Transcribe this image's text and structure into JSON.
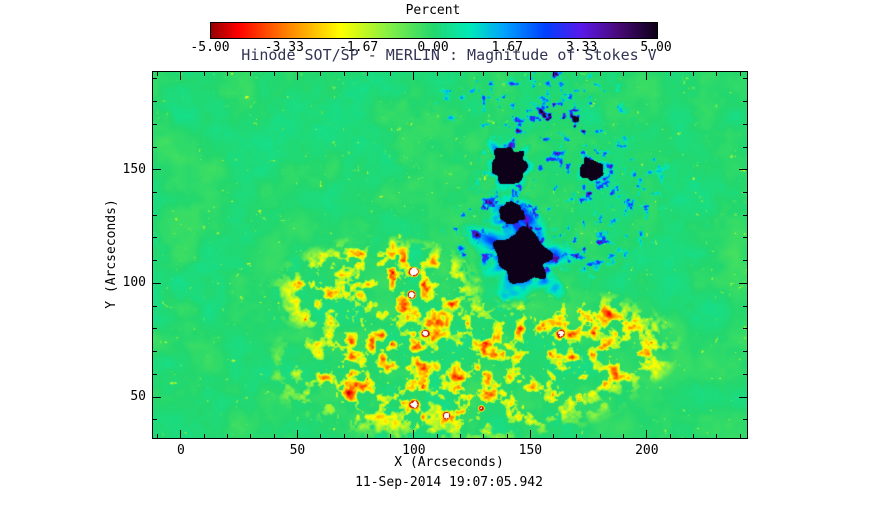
{
  "colors": {
    "background": "#ffffff",
    "axis": "#000000",
    "title": "#333355"
  },
  "chart_data": {
    "type": "heatmap",
    "title": "Hinode SOT/SP - MERLIN : Magnitude of Stokes V",
    "xlabel": "X (Arcseconds)",
    "ylabel": "Y (Arcseconds)",
    "footer_timestamp": "11-Sep-2014 19:07:05.942",
    "x_range": [
      -12,
      243
    ],
    "y_range": [
      32,
      193
    ],
    "x_ticks": [
      0,
      50,
      100,
      150,
      200
    ],
    "y_ticks": [
      50,
      100,
      150
    ],
    "minor_tick_step": 10,
    "colorbar": {
      "title": "Percent",
      "tick_labels": [
        "-5.00",
        "-3.33",
        "-1.67",
        "0.00",
        "1.67",
        "3.33",
        "5.00"
      ],
      "min": -5,
      "max": 5,
      "colormap_stops": [
        [
          0.0,
          [
            150,
            0,
            0
          ]
        ],
        [
          0.06,
          [
            255,
            0,
            0
          ]
        ],
        [
          0.17,
          [
            255,
            130,
            0
          ]
        ],
        [
          0.29,
          [
            255,
            255,
            0
          ]
        ],
        [
          0.4,
          [
            130,
            240,
            70
          ]
        ],
        [
          0.5,
          [
            35,
            215,
            110
          ]
        ],
        [
          0.58,
          [
            0,
            235,
            185
          ]
        ],
        [
          0.66,
          [
            0,
            160,
            255
          ]
        ],
        [
          0.75,
          [
            0,
            65,
            255
          ]
        ],
        [
          0.83,
          [
            90,
            25,
            235
          ]
        ],
        [
          0.91,
          [
            75,
            10,
            125
          ]
        ],
        [
          1.0,
          [
            15,
            0,
            25
          ]
        ]
      ]
    },
    "features": {
      "background_value": 0,
      "sunspots": [
        {
          "x": 147,
          "y": 112,
          "umbra_r": 12,
          "penumbra_r": 26
        },
        {
          "x": 142,
          "y": 131,
          "umbra_r": 5,
          "penumbra_r": 10
        },
        {
          "x": 141,
          "y": 152,
          "umbra_r": 8,
          "penumbra_r": 13
        },
        {
          "x": 176,
          "y": 150,
          "umbra_r": 5,
          "penumbra_r": 8
        }
      ],
      "plage_regions": [
        {
          "cx": 118,
          "cy": 62,
          "rx": 85,
          "ry": 34
        },
        {
          "cx": 85,
          "cy": 96,
          "rx": 48,
          "ry": 26
        },
        {
          "cx": 168,
          "cy": 72,
          "rx": 48,
          "ry": 26
        }
      ],
      "strong_negative_spots": [
        {
          "x": 100,
          "y": 105,
          "r": 2.5,
          "white_core": true
        },
        {
          "x": 99,
          "y": 95,
          "r": 2.2,
          "white_core": true
        },
        {
          "x": 105,
          "y": 78,
          "r": 2.0,
          "white_core": false
        },
        {
          "x": 163,
          "y": 78,
          "r": 2.2,
          "white_core": false
        },
        {
          "x": 100,
          "y": 47,
          "r": 2.4,
          "white_core": false
        },
        {
          "x": 114,
          "y": 42,
          "r": 1.8,
          "white_core": false
        },
        {
          "x": 129,
          "y": 45,
          "r": 1.6,
          "white_core": false
        }
      ],
      "blue_speckle_regions": [
        {
          "cx": 168,
          "cy": 140,
          "rx": 45,
          "ry": 42
        },
        {
          "cx": 150,
          "cy": 180,
          "rx": 45,
          "ry": 18
        },
        {
          "cx": 128,
          "cy": 122,
          "rx": 18,
          "ry": 16
        }
      ]
    }
  }
}
